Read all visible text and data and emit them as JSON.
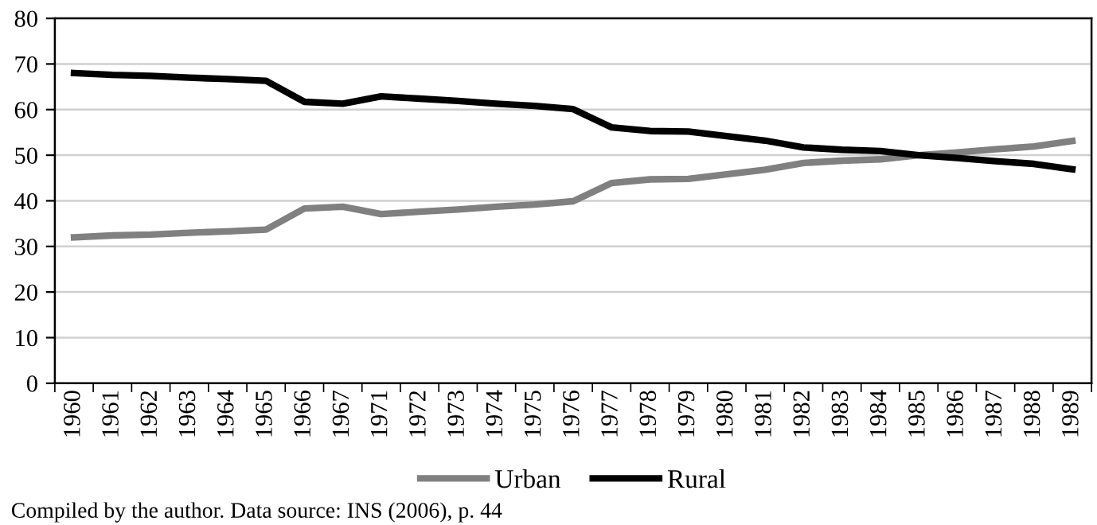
{
  "chart_data": {
    "type": "line",
    "categories": [
      "1960",
      "1961",
      "1962",
      "1963",
      "1964",
      "1965",
      "1966",
      "1967",
      "1971",
      "1972",
      "1973",
      "1974",
      "1975",
      "1976",
      "1977",
      "1978",
      "1979",
      "1980",
      "1981",
      "1982",
      "1983",
      "1984",
      "1985",
      "1986",
      "1987",
      "1988",
      "1989"
    ],
    "series": [
      {
        "name": "Urban",
        "color": "#808080",
        "values": [
          32.0,
          32.4,
          32.6,
          33.0,
          33.3,
          33.7,
          38.3,
          38.7,
          37.1,
          37.6,
          38.1,
          38.7,
          39.2,
          39.9,
          43.9,
          44.7,
          44.8,
          45.8,
          46.8,
          48.3,
          48.8,
          49.1,
          50.0,
          50.6,
          51.3,
          51.9,
          53.1
        ]
      },
      {
        "name": "Rural",
        "color": "#000000",
        "values": [
          68.0,
          67.6,
          67.4,
          67.0,
          66.7,
          66.3,
          61.7,
          61.3,
          62.9,
          62.4,
          61.9,
          61.3,
          60.8,
          60.1,
          56.1,
          55.3,
          55.2,
          54.2,
          53.2,
          51.7,
          51.2,
          50.9,
          50.0,
          49.4,
          48.7,
          48.1,
          46.9
        ]
      }
    ],
    "ylim": [
      0,
      80
    ],
    "yticks": [
      0,
      10,
      20,
      30,
      40,
      50,
      60,
      70,
      80
    ],
    "grid": "y",
    "legend": "bottom",
    "marker": "none",
    "line_style": "solid",
    "annotations": [
      "Compiled by the author. Data source: INS (2006), p. 44"
    ]
  }
}
